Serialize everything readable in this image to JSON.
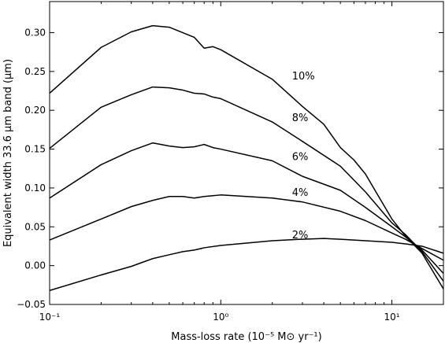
{
  "chart_data": {
    "type": "line",
    "title": "",
    "xlabel": "Mass-loss rate (10⁻⁵ M⊙ yr⁻¹)",
    "ylabel": "Equivalent width 33.6 μm band (μm)",
    "xscale": "log",
    "xlim": [
      0.1,
      20
    ],
    "ylim": [
      -0.05,
      0.34
    ],
    "xticks": [
      {
        "value": 0.1,
        "label": "10⁻¹"
      },
      {
        "value": 1,
        "label": "10⁰"
      },
      {
        "value": 10,
        "label": "10¹"
      }
    ],
    "yticks": [
      -0.05,
      0.0,
      0.05,
      0.1,
      0.15,
      0.2,
      0.25,
      0.3
    ],
    "ytick_labels": [
      "−0.05",
      "0.00",
      "0.05",
      "0.10",
      "0.15",
      "0.20",
      "0.25",
      "0.30"
    ],
    "grid": false,
    "series": [
      {
        "name": "10%",
        "label_at": [
          2.5,
          0.245
        ],
        "points": [
          [
            0.1,
            0.222
          ],
          [
            0.2,
            0.281
          ],
          [
            0.3,
            0.301
          ],
          [
            0.4,
            0.309
          ],
          [
            0.5,
            0.307
          ],
          [
            0.7,
            0.294
          ],
          [
            0.8,
            0.28
          ],
          [
            0.9,
            0.282
          ],
          [
            1.0,
            0.278
          ],
          [
            2.0,
            0.24
          ],
          [
            3.0,
            0.205
          ],
          [
            4.0,
            0.182
          ],
          [
            5.0,
            0.152
          ],
          [
            6.0,
            0.136
          ],
          [
            7.0,
            0.118
          ],
          [
            10.0,
            0.06
          ],
          [
            12.0,
            0.038
          ],
          [
            15.0,
            0.016
          ],
          [
            20.0,
            -0.03
          ]
        ]
      },
      {
        "name": "8%",
        "label_at": [
          2.5,
          0.191
        ],
        "points": [
          [
            0.1,
            0.151
          ],
          [
            0.2,
            0.204
          ],
          [
            0.3,
            0.22
          ],
          [
            0.4,
            0.23
          ],
          [
            0.5,
            0.229
          ],
          [
            0.6,
            0.226
          ],
          [
            0.7,
            0.222
          ],
          [
            0.8,
            0.221
          ],
          [
            0.9,
            0.217
          ],
          [
            1.0,
            0.215
          ],
          [
            2.0,
            0.185
          ],
          [
            3.0,
            0.16
          ],
          [
            5.0,
            0.128
          ],
          [
            7.0,
            0.095
          ],
          [
            10.0,
            0.055
          ],
          [
            12.0,
            0.04
          ],
          [
            15.0,
            0.018
          ],
          [
            20.0,
            -0.02
          ]
        ]
      },
      {
        "name": "6%",
        "label_at": [
          2.5,
          0.141
        ],
        "points": [
          [
            0.1,
            0.087
          ],
          [
            0.2,
            0.13
          ],
          [
            0.3,
            0.148
          ],
          [
            0.4,
            0.158
          ],
          [
            0.5,
            0.154
          ],
          [
            0.6,
            0.152
          ],
          [
            0.7,
            0.153
          ],
          [
            0.8,
            0.156
          ],
          [
            0.9,
            0.152
          ],
          [
            1.0,
            0.15
          ],
          [
            2.0,
            0.135
          ],
          [
            3.0,
            0.115
          ],
          [
            5.0,
            0.097
          ],
          [
            7.0,
            0.075
          ],
          [
            10.0,
            0.05
          ],
          [
            12.0,
            0.037
          ],
          [
            15.0,
            0.02
          ],
          [
            20.0,
            -0.01
          ]
        ]
      },
      {
        "name": "4%",
        "label_at": [
          2.5,
          0.095
        ],
        "points": [
          [
            0.1,
            0.033
          ],
          [
            0.2,
            0.06
          ],
          [
            0.3,
            0.076
          ],
          [
            0.4,
            0.084
          ],
          [
            0.5,
            0.089
          ],
          [
            0.6,
            0.089
          ],
          [
            0.7,
            0.087
          ],
          [
            0.8,
            0.089
          ],
          [
            0.9,
            0.09
          ],
          [
            1.0,
            0.091
          ],
          [
            2.0,
            0.087
          ],
          [
            3.0,
            0.082
          ],
          [
            5.0,
            0.07
          ],
          [
            7.0,
            0.058
          ],
          [
            10.0,
            0.042
          ],
          [
            12.0,
            0.034
          ],
          [
            15.0,
            0.022
          ],
          [
            20.0,
            0.007
          ]
        ]
      },
      {
        "name": "2%",
        "label_at": [
          2.5,
          0.04
        ],
        "points": [
          [
            0.1,
            -0.032
          ],
          [
            0.2,
            -0.012
          ],
          [
            0.3,
            -0.001
          ],
          [
            0.4,
            0.009
          ],
          [
            0.5,
            0.014
          ],
          [
            0.6,
            0.018
          ],
          [
            0.7,
            0.02
          ],
          [
            0.8,
            0.023
          ],
          [
            1.0,
            0.026
          ],
          [
            2.0,
            0.032
          ],
          [
            3.0,
            0.034
          ],
          [
            4.0,
            0.035
          ],
          [
            5.0,
            0.034
          ],
          [
            7.0,
            0.032
          ],
          [
            10.0,
            0.03
          ],
          [
            12.0,
            0.028
          ],
          [
            15.0,
            0.025
          ],
          [
            20.0,
            0.016
          ]
        ]
      }
    ]
  }
}
